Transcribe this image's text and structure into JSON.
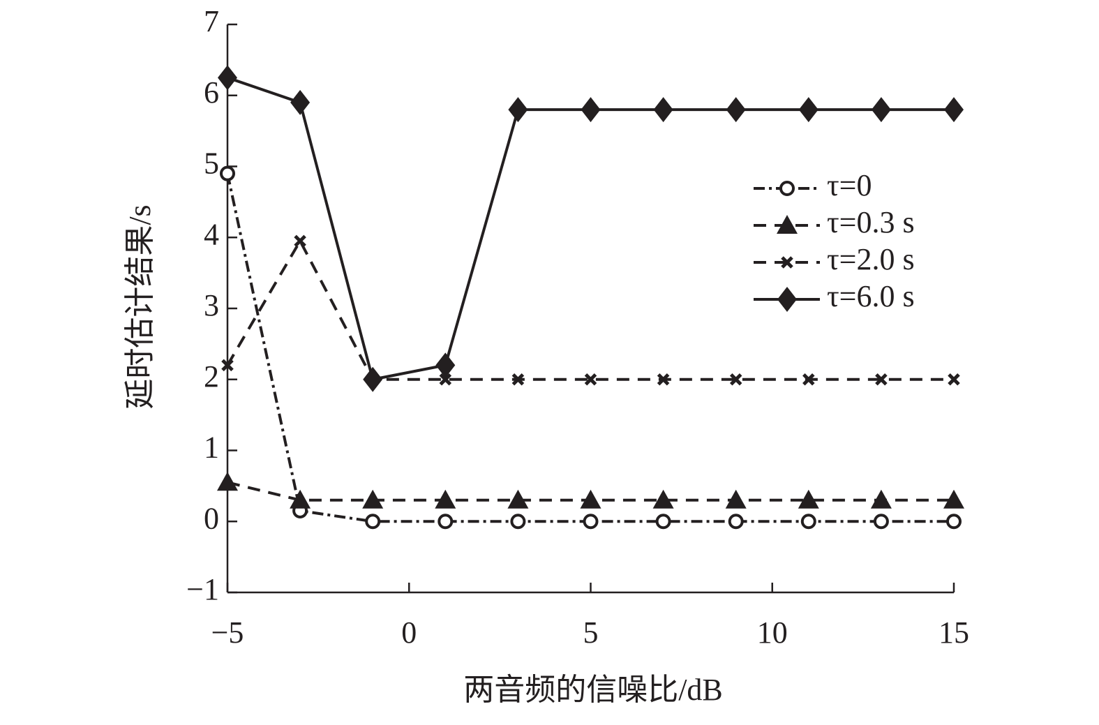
{
  "chart_data": {
    "type": "line",
    "x_label": "两音频的信噪比/dB",
    "y_label": "延时估计结果/s",
    "x": [
      -5,
      -3,
      -1,
      1,
      3,
      5,
      7,
      9,
      11,
      13,
      15
    ],
    "xlim": [
      -5,
      15
    ],
    "xticks": [
      {
        "value": -5,
        "label": "−5"
      },
      0,
      5,
      10,
      15
    ],
    "ylim": [
      -1,
      7
    ],
    "yticks": [
      {
        "value": -1,
        "label": "−1"
      },
      0,
      1,
      2,
      3,
      4,
      5,
      6,
      7
    ],
    "legend_position": "center right",
    "series": [
      {
        "name": "τ=0",
        "color": "#231f20",
        "marker": "open-circle",
        "line_style": "dash-dot",
        "values": [
          4.9,
          0.15,
          0,
          0,
          0,
          0,
          0,
          0,
          0,
          0,
          0
        ]
      },
      {
        "name": "τ=0.3 s",
        "color": "#231f20",
        "marker": "triangle",
        "line_style": "dashed",
        "values": [
          0.55,
          0.3,
          0.3,
          0.3,
          0.3,
          0.3,
          0.3,
          0.3,
          0.3,
          0.3,
          0.3
        ]
      },
      {
        "name": "τ=2.0 s",
        "color": "#231f20",
        "marker": "cross",
        "line_style": "dashed",
        "values": [
          2.2,
          3.95,
          2,
          2,
          2,
          2,
          2,
          2,
          2,
          2,
          2
        ]
      },
      {
        "name": "τ=6.0 s",
        "color": "#231f20",
        "marker": "diamond",
        "line_style": "solid",
        "values": [
          6.25,
          5.9,
          2.0,
          2.2,
          5.8,
          5.8,
          5.8,
          5.8,
          5.8,
          5.8,
          5.8
        ]
      }
    ]
  }
}
